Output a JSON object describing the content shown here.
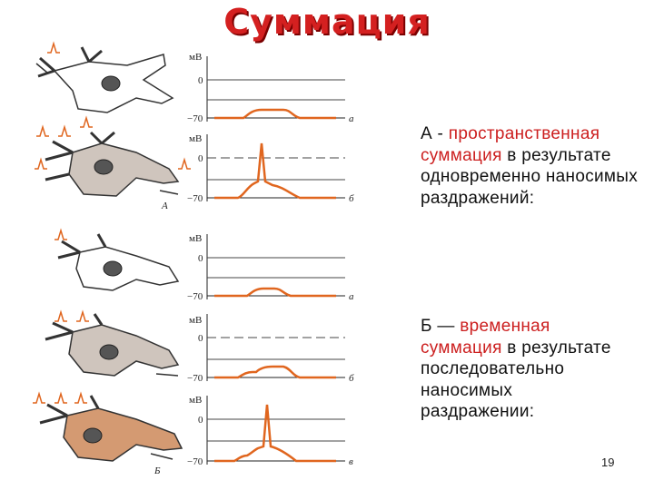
{
  "title": "Суммация",
  "axis": {
    "unit": "мВ",
    "zero": "0",
    "rest": "−70"
  },
  "panels": [
    {
      "label": "А",
      "rows": [
        "а",
        "б"
      ]
    },
    {
      "label": "Б",
      "rows": [
        "а",
        "б",
        "в"
      ]
    }
  ],
  "text": {
    "a_prefix": "А - ",
    "a_red": "пространственная суммация",
    "a_rest": " в результате одновременно наносимых раздражений:",
    "b_prefix": "Б — ",
    "b_red": "временная суммация",
    "b_rest": " в результате последовательно наносимых раздражении:"
  },
  "page_number": "19",
  "colors": {
    "accent": "#cc1f1f",
    "trace": "#e0661f",
    "cell_grey": "#cfc5bd",
    "cell_orange": "#d49a72"
  }
}
